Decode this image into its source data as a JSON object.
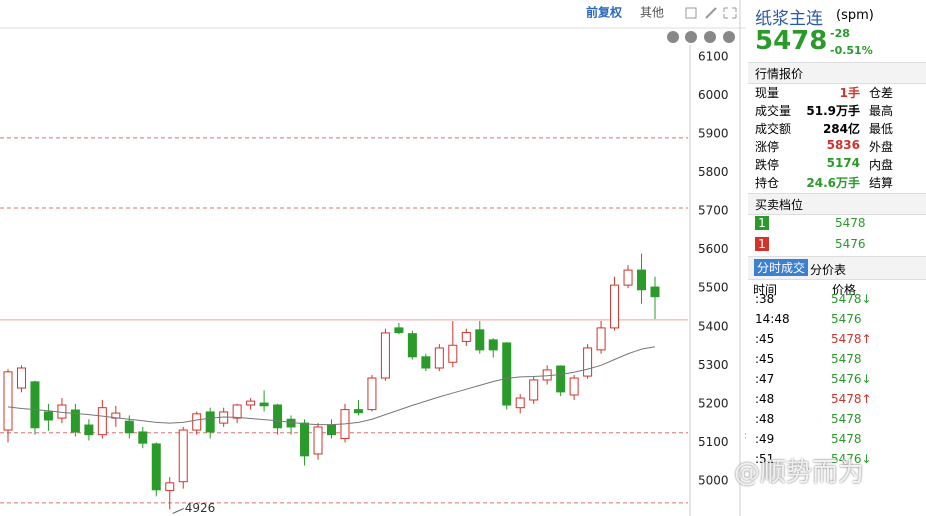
{
  "toolbar": {
    "adjust": "前复权",
    "other": "其他"
  },
  "chart_data": {
    "type": "candlestick",
    "open": [
      5132,
      5241,
      5257,
      5179,
      5163,
      5184,
      5145,
      5120,
      5163,
      5155,
      5127,
      5096,
      4975,
      4998,
      5132,
      5179,
      5150,
      5163,
      5197,
      5202,
      5197,
      5160,
      5150,
      5070,
      5145,
      5110,
      5185,
      5185,
      5267,
      5397,
      5382,
      5322,
      5293,
      5308,
      5362,
      5392,
      5366,
      5358,
      5190,
      5210,
      5262,
      5298,
      5223,
      5272,
      5340,
      5397,
      5508,
      5547,
      5503
    ],
    "high": [
      5290,
      5300,
      5260,
      5200,
      5215,
      5200,
      5160,
      5210,
      5195,
      5170,
      5140,
      5100,
      5010,
      5140,
      5180,
      5190,
      5190,
      5200,
      5215,
      5235,
      5200,
      5170,
      5160,
      5150,
      5160,
      5200,
      5210,
      5275,
      5395,
      5410,
      5390,
      5330,
      5355,
      5415,
      5395,
      5415,
      5370,
      5360,
      5225,
      5270,
      5300,
      5300,
      5275,
      5355,
      5415,
      5530,
      5560,
      5590,
      5530
    ],
    "low": [
      5100,
      5230,
      5120,
      5130,
      5150,
      5115,
      5105,
      5110,
      5140,
      5110,
      5085,
      4960,
      4926,
      4980,
      5120,
      5110,
      5140,
      5150,
      5185,
      5180,
      5120,
      5120,
      5040,
      5055,
      5110,
      5100,
      5170,
      5180,
      5260,
      5380,
      5315,
      5285,
      5285,
      5295,
      5350,
      5330,
      5320,
      5185,
      5175,
      5200,
      5250,
      5220,
      5210,
      5265,
      5330,
      5390,
      5500,
      5460,
      5420
    ],
    "close": [
      5283,
      5293,
      5138,
      5158,
      5197,
      5127,
      5120,
      5190,
      5176,
      5125,
      5098,
      4977,
      4995,
      5132,
      5174,
      5127,
      5179,
      5197,
      5207,
      5195,
      5138,
      5140,
      5065,
      5140,
      5120,
      5185,
      5177,
      5267,
      5384,
      5385,
      5322,
      5293,
      5345,
      5352,
      5385,
      5340,
      5340,
      5197,
      5215,
      5262,
      5288,
      5231,
      5267,
      5345,
      5397,
      5508,
      5547,
      5496,
      5478
    ],
    "up_color": "#d0342c",
    "down_color": "#2a9a2a",
    "ma": {
      "color": "#777777",
      "values": [
        5192,
        5188,
        5185,
        5182,
        5178,
        5175,
        5172,
        5168,
        5164,
        5160,
        5156,
        5152,
        5150,
        5152,
        5158,
        5163,
        5166,
        5165,
        5162,
        5159,
        5156,
        5152,
        5148,
        5146,
        5146,
        5148,
        5152,
        5160,
        5172,
        5184,
        5196,
        5207,
        5218,
        5228,
        5238,
        5248,
        5258,
        5266,
        5270,
        5271,
        5273,
        5276,
        5282,
        5290,
        5300,
        5315,
        5330,
        5342,
        5348
      ]
    },
    "levels": [
      {
        "value": 5890,
        "color": "#e07070",
        "dash": true
      },
      {
        "value": 5708,
        "color": "#e07070",
        "dash": true
      },
      {
        "value": 5418,
        "color": "#f0a0a0",
        "dash": false
      },
      {
        "value": 5125,
        "color": "#e07070",
        "dash": true
      },
      {
        "value": 4943,
        "color": "#e07070",
        "dash": true
      }
    ],
    "annotations": [
      4926
    ],
    "ylim": [
      4909,
      6131
    ],
    "yticks": [
      5000,
      5100,
      5200,
      5300,
      5400,
      5500,
      5600,
      5700,
      5800,
      5900,
      6000,
      6100
    ]
  },
  "panel": {
    "name": "纸浆主连",
    "code": "(spm)",
    "price": "5478",
    "change": "-28",
    "change_pct": "-0.51%",
    "quote_title": "行情报价",
    "quotes": [
      [
        "现量",
        "1手",
        "仓差",
        "#d0342c"
      ],
      [
        "成交量",
        "51.9万手",
        "最高",
        "#000"
      ],
      [
        "成交额",
        "284亿",
        "最低",
        "#000"
      ],
      [
        "涨停",
        "5836",
        "外盘",
        "#d0342c"
      ],
      [
        "跌停",
        "5174",
        "内盘",
        "#2a9a2a"
      ],
      [
        "持仓",
        "24.6万手",
        "结算",
        "#2a9a2a"
      ]
    ],
    "book_title": "买卖档位",
    "book": [
      [
        "1",
        "5478",
        "#2a9a2a"
      ],
      [
        "1",
        "5476",
        "#d0342c"
      ]
    ],
    "tabs": [
      "分时成交",
      "分价表"
    ],
    "trade_header": [
      "时间",
      "价格"
    ],
    "trades": [
      [
        ":38",
        "5478↓",
        "#2a9a2a"
      ],
      [
        "14:48",
        "5476",
        "#2a9a2a"
      ],
      [
        ":45",
        "5478↑",
        "#d0342c"
      ],
      [
        ":45",
        "5478",
        "#2a9a2a"
      ],
      [
        ":47",
        "5476↓",
        "#2a9a2a"
      ],
      [
        ":48",
        "5478↑",
        "#d0342c"
      ],
      [
        ":48",
        "5478",
        "#2a9a2a"
      ],
      [
        ":49",
        "5478",
        "#2a9a2a"
      ],
      [
        ":51",
        "5476↓",
        "#2a9a2a"
      ]
    ]
  },
  "watermark": "@顺势而为"
}
